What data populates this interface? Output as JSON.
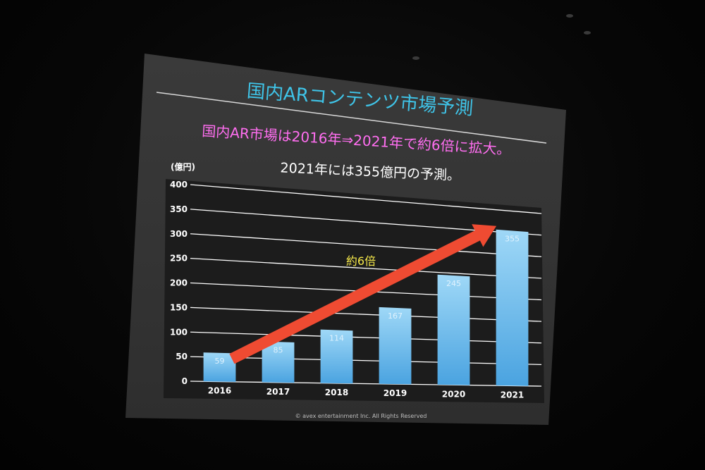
{
  "slide": {
    "title": "国内ARコンテンツ市場予測",
    "headline": "国内AR市場は2016年⇒2021年で約6倍に拡大。",
    "subheadline": "2021年には355億円の予測。",
    "copyright": "© avex entertainment Inc. All Rights Reserved"
  },
  "colors": {
    "title": "#3fc4e8",
    "headline": "#ff6ef0",
    "subheadline": "#ffffff",
    "bar_top": "#9fd8f7",
    "bar_bottom": "#4aa3e0",
    "arrow": "#ef4b32",
    "annotation": "#f5e84a",
    "screen": "#363636",
    "plot_bg": "#1c1c1c"
  },
  "chart_data": {
    "type": "bar",
    "title": "",
    "ylabel": "(億円)",
    "xlabel": "",
    "categories": [
      "2016",
      "2017",
      "2018",
      "2019",
      "2020",
      "2021"
    ],
    "values": [
      59,
      85,
      114,
      167,
      245,
      355
    ],
    "ylim": [
      0,
      400
    ],
    "yticks": [
      0,
      50,
      100,
      150,
      200,
      250,
      300,
      350,
      400
    ],
    "grid": true,
    "annotation": "約6倍",
    "arrow": {
      "from": "2016",
      "to": "2021"
    }
  }
}
